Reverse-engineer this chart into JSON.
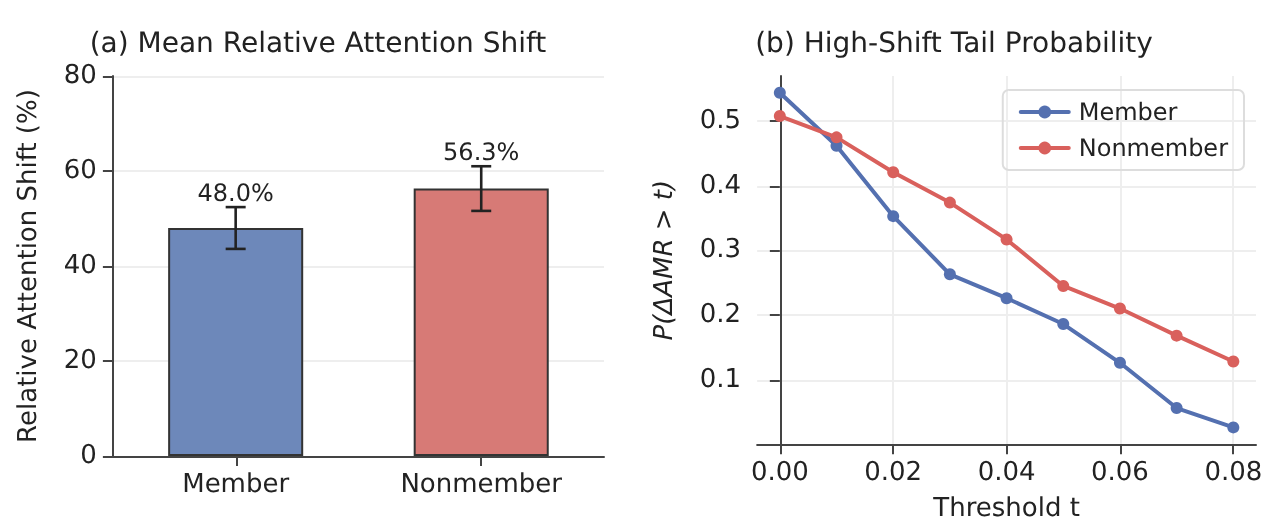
{
  "chart_data": [
    {
      "type": "bar",
      "title": "(a) Mean Relative Attention Shift",
      "ylabel": "Relative Attention Shift (%)",
      "categories": [
        "Member",
        "Nonmember"
      ],
      "values": [
        48.0,
        56.3
      ],
      "colors": [
        "#6d88ba",
        "#d77a76"
      ],
      "errors": [
        4.4,
        4.7
      ],
      "value_labels": [
        "48.0%",
        "56.3%"
      ],
      "ylim": [
        0,
        80
      ],
      "yticks": [
        0,
        20,
        40,
        60,
        80
      ],
      "grid": "y",
      "legend": false
    },
    {
      "type": "line",
      "title": "(b) High-Shift Tail Probability",
      "xlabel": "Threshold t",
      "ylabel": "P(ΔAMR > t)",
      "x": [
        0,
        0.01,
        0.02,
        0.03,
        0.04,
        0.05,
        0.06,
        0.07,
        0.08
      ],
      "series": [
        {
          "name": "Member",
          "color": "#5470b0",
          "values": [
            0.544,
            0.462,
            0.353,
            0.263,
            0.226,
            0.186,
            0.126,
            0.056,
            0.026
          ]
        },
        {
          "name": "Nonmember",
          "color": "#d9605c",
          "values": [
            0.508,
            0.475,
            0.421,
            0.374,
            0.317,
            0.245,
            0.21,
            0.168,
            0.128
          ]
        }
      ],
      "xlim": [
        -0.004,
        0.084
      ],
      "xticks": [
        {
          "value": 0,
          "label": "0.00"
        },
        {
          "value": 0.02,
          "label": "0.02"
        },
        {
          "value": 0.04,
          "label": "0.04"
        },
        {
          "value": 0.06,
          "label": "0.06"
        },
        {
          "value": 0.08,
          "label": "0.08"
        }
      ],
      "ylim": [
        0,
        0.57
      ],
      "yticks": [
        0.1,
        0.2,
        0.3,
        0.4,
        0.5
      ],
      "grid": true,
      "legend": "top right",
      "marker": "circle",
      "line_style": "solid"
    }
  ]
}
